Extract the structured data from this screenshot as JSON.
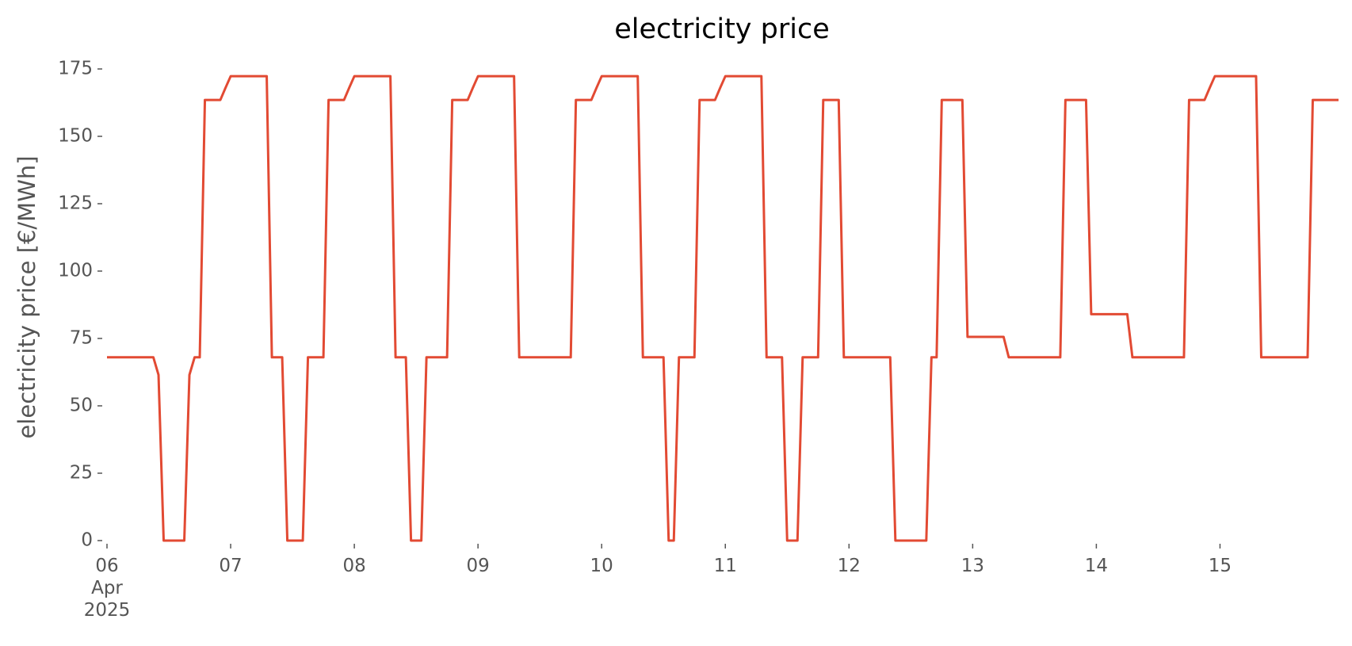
{
  "chart_data": {
    "type": "line",
    "title": "electricity price",
    "ylabel": "electricity price [€/MWh]",
    "x": [
      "2025-04-06T00:00",
      "2025-04-06T01:00",
      "2025-04-06T02:00",
      "2025-04-06T03:00",
      "2025-04-06T04:00",
      "2025-04-06T05:00",
      "2025-04-06T06:00",
      "2025-04-06T07:00",
      "2025-04-06T08:00",
      "2025-04-06T09:00",
      "2025-04-06T10:00",
      "2025-04-06T11:00",
      "2025-04-06T12:00",
      "2025-04-06T13:00",
      "2025-04-06T14:00",
      "2025-04-06T15:00",
      "2025-04-06T16:00",
      "2025-04-06T17:00",
      "2025-04-06T18:00",
      "2025-04-06T19:00",
      "2025-04-06T20:00",
      "2025-04-06T21:00",
      "2025-04-06T22:00",
      "2025-04-06T23:00",
      "2025-04-07T00:00",
      "2025-04-07T01:00",
      "2025-04-07T02:00",
      "2025-04-07T03:00",
      "2025-04-07T04:00",
      "2025-04-07T05:00",
      "2025-04-07T06:00",
      "2025-04-07T07:00",
      "2025-04-07T08:00",
      "2025-04-07T09:00",
      "2025-04-07T10:00",
      "2025-04-07T11:00",
      "2025-04-07T12:00",
      "2025-04-07T13:00",
      "2025-04-07T14:00",
      "2025-04-07T15:00",
      "2025-04-07T16:00",
      "2025-04-07T17:00",
      "2025-04-07T18:00",
      "2025-04-07T19:00",
      "2025-04-07T20:00",
      "2025-04-07T21:00",
      "2025-04-07T22:00",
      "2025-04-07T23:00",
      "2025-04-08T00:00",
      "2025-04-08T01:00",
      "2025-04-08T02:00",
      "2025-04-08T03:00",
      "2025-04-08T04:00",
      "2025-04-08T05:00",
      "2025-04-08T06:00",
      "2025-04-08T07:00",
      "2025-04-08T08:00",
      "2025-04-08T09:00",
      "2025-04-08T10:00",
      "2025-04-08T11:00",
      "2025-04-08T12:00",
      "2025-04-08T13:00",
      "2025-04-08T14:00",
      "2025-04-08T15:00",
      "2025-04-08T16:00",
      "2025-04-08T17:00",
      "2025-04-08T18:00",
      "2025-04-08T19:00",
      "2025-04-08T20:00",
      "2025-04-08T21:00",
      "2025-04-08T22:00",
      "2025-04-08T23:00",
      "2025-04-09T00:00",
      "2025-04-09T01:00",
      "2025-04-09T02:00",
      "2025-04-09T03:00",
      "2025-04-09T04:00",
      "2025-04-09T05:00",
      "2025-04-09T06:00",
      "2025-04-09T07:00",
      "2025-04-09T08:00",
      "2025-04-09T09:00",
      "2025-04-09T10:00",
      "2025-04-09T11:00",
      "2025-04-09T12:00",
      "2025-04-09T13:00",
      "2025-04-09T14:00",
      "2025-04-09T15:00",
      "2025-04-09T16:00",
      "2025-04-09T17:00",
      "2025-04-09T18:00",
      "2025-04-09T19:00",
      "2025-04-09T20:00",
      "2025-04-09T21:00",
      "2025-04-09T22:00",
      "2025-04-09T23:00",
      "2025-04-10T00:00",
      "2025-04-10T01:00",
      "2025-04-10T02:00",
      "2025-04-10T03:00",
      "2025-04-10T04:00",
      "2025-04-10T05:00",
      "2025-04-10T06:00",
      "2025-04-10T07:00",
      "2025-04-10T08:00",
      "2025-04-10T09:00",
      "2025-04-10T10:00",
      "2025-04-10T11:00",
      "2025-04-10T12:00",
      "2025-04-10T13:00",
      "2025-04-10T14:00",
      "2025-04-10T15:00",
      "2025-04-10T16:00",
      "2025-04-10T17:00",
      "2025-04-10T18:00",
      "2025-04-10T19:00",
      "2025-04-10T20:00",
      "2025-04-10T21:00",
      "2025-04-10T22:00",
      "2025-04-10T23:00",
      "2025-04-11T00:00",
      "2025-04-11T01:00",
      "2025-04-11T02:00",
      "2025-04-11T03:00",
      "2025-04-11T04:00",
      "2025-04-11T05:00",
      "2025-04-11T06:00",
      "2025-04-11T07:00",
      "2025-04-11T08:00",
      "2025-04-11T09:00",
      "2025-04-11T10:00",
      "2025-04-11T11:00",
      "2025-04-11T12:00",
      "2025-04-11T13:00",
      "2025-04-11T14:00",
      "2025-04-11T15:00",
      "2025-04-11T16:00",
      "2025-04-11T17:00",
      "2025-04-11T18:00",
      "2025-04-11T19:00",
      "2025-04-11T20:00",
      "2025-04-11T21:00",
      "2025-04-11T22:00",
      "2025-04-11T23:00",
      "2025-04-12T00:00",
      "2025-04-12T01:00",
      "2025-04-12T02:00",
      "2025-04-12T03:00",
      "2025-04-12T04:00",
      "2025-04-12T05:00",
      "2025-04-12T06:00",
      "2025-04-12T07:00",
      "2025-04-12T08:00",
      "2025-04-12T09:00",
      "2025-04-12T10:00",
      "2025-04-12T11:00",
      "2025-04-12T12:00",
      "2025-04-12T13:00",
      "2025-04-12T14:00",
      "2025-04-12T15:00",
      "2025-04-12T16:00",
      "2025-04-12T17:00",
      "2025-04-12T18:00",
      "2025-04-12T19:00",
      "2025-04-12T20:00",
      "2025-04-12T21:00",
      "2025-04-12T22:00",
      "2025-04-12T23:00",
      "2025-04-13T00:00",
      "2025-04-13T01:00",
      "2025-04-13T02:00",
      "2025-04-13T03:00",
      "2025-04-13T04:00",
      "2025-04-13T05:00",
      "2025-04-13T06:00",
      "2025-04-13T07:00",
      "2025-04-13T08:00",
      "2025-04-13T09:00",
      "2025-04-13T10:00",
      "2025-04-13T11:00",
      "2025-04-13T12:00",
      "2025-04-13T13:00",
      "2025-04-13T14:00",
      "2025-04-13T15:00",
      "2025-04-13T16:00",
      "2025-04-13T17:00",
      "2025-04-13T18:00",
      "2025-04-13T19:00",
      "2025-04-13T20:00",
      "2025-04-13T21:00",
      "2025-04-13T22:00",
      "2025-04-13T23:00",
      "2025-04-14T00:00",
      "2025-04-14T01:00",
      "2025-04-14T02:00",
      "2025-04-14T03:00",
      "2025-04-14T04:00",
      "2025-04-14T05:00",
      "2025-04-14T06:00",
      "2025-04-14T07:00",
      "2025-04-14T08:00",
      "2025-04-14T09:00",
      "2025-04-14T10:00",
      "2025-04-14T11:00",
      "2025-04-14T12:00",
      "2025-04-14T13:00",
      "2025-04-14T14:00",
      "2025-04-14T15:00",
      "2025-04-14T16:00",
      "2025-04-14T17:00",
      "2025-04-14T18:00",
      "2025-04-14T19:00",
      "2025-04-14T20:00",
      "2025-04-14T21:00",
      "2025-04-14T22:00",
      "2025-04-14T23:00",
      "2025-04-15T00:00",
      "2025-04-15T01:00",
      "2025-04-15T02:00",
      "2025-04-15T03:00",
      "2025-04-15T04:00",
      "2025-04-15T05:00",
      "2025-04-15T06:00",
      "2025-04-15T07:00",
      "2025-04-15T08:00",
      "2025-04-15T09:00",
      "2025-04-15T10:00",
      "2025-04-15T11:00",
      "2025-04-15T12:00",
      "2025-04-15T13:00",
      "2025-04-15T14:00",
      "2025-04-15T15:00",
      "2025-04-15T16:00",
      "2025-04-15T17:00",
      "2025-04-15T18:00",
      "2025-04-15T19:00",
      "2025-04-15T20:00",
      "2025-04-15T21:00",
      "2025-04-15T22:00",
      "2025-04-15T23:00"
    ],
    "values": [
      68,
      68,
      68,
      68,
      68,
      68,
      68,
      68,
      68,
      68,
      61.5,
      0,
      0,
      0,
      0,
      0,
      61.5,
      68,
      68,
      163.5,
      163.5,
      163.5,
      163.5,
      168,
      172.3,
      172.3,
      172.3,
      172.3,
      172.3,
      172.3,
      172.3,
      172.3,
      68,
      68,
      68,
      0,
      0,
      0,
      0,
      68,
      68,
      68,
      68,
      163.5,
      163.5,
      163.5,
      163.5,
      168,
      172.3,
      172.3,
      172.3,
      172.3,
      172.3,
      172.3,
      172.3,
      172.3,
      68,
      68,
      68,
      0,
      0,
      0,
      68,
      68,
      68,
      68,
      68,
      163.5,
      163.5,
      163.5,
      163.5,
      168,
      172.3,
      172.3,
      172.3,
      172.3,
      172.3,
      172.3,
      172.3,
      172.3,
      68,
      68,
      68,
      68,
      68,
      68,
      68,
      68,
      68,
      68,
      68,
      163.5,
      163.5,
      163.5,
      163.5,
      168,
      172.3,
      172.3,
      172.3,
      172.3,
      172.3,
      172.3,
      172.3,
      172.3,
      68,
      68,
      68,
      68,
      68,
      0,
      0,
      68,
      68,
      68,
      68,
      163.5,
      163.5,
      163.5,
      163.5,
      168,
      172.3,
      172.3,
      172.3,
      172.3,
      172.3,
      172.3,
      172.3,
      172.3,
      68,
      68,
      68,
      68,
      0,
      0,
      0,
      68,
      68,
      68,
      68,
      163.5,
      163.5,
      163.5,
      163.5,
      68,
      68,
      68,
      68,
      68,
      68,
      68,
      68,
      68,
      68,
      0,
      0,
      0,
      0,
      0,
      0,
      0,
      68,
      68,
      163.5,
      163.5,
      163.5,
      163.5,
      163.5,
      75.6,
      75.6,
      75.6,
      75.6,
      75.6,
      75.6,
      75.6,
      75.6,
      68,
      68,
      68,
      68,
      68,
      68,
      68,
      68,
      68,
      68,
      68,
      163.5,
      163.5,
      163.5,
      163.5,
      163.5,
      84,
      84,
      84,
      84,
      84,
      84,
      84,
      84,
      68,
      68,
      68,
      68,
      68,
      68,
      68,
      68,
      68,
      68,
      68,
      163.5,
      163.5,
      163.5,
      163.5,
      168,
      172.3,
      172.3,
      172.3,
      172.3,
      172.3,
      172.3,
      172.3,
      172.3,
      172.3,
      68,
      68,
      68,
      68,
      68,
      68,
      68,
      68,
      68,
      68,
      163.5,
      163.5,
      163.5,
      163.5,
      163.5,
      163.5
    ],
    "color": "#e24a33",
    "xlim": [
      "2025-04-06T00:00",
      "2025-04-15T23:00"
    ],
    "xticks": [
      {
        "value": "2025-04-06T00:00",
        "label": "06\nApr\n2025"
      },
      {
        "value": "2025-04-07T00:00",
        "label": "07"
      },
      {
        "value": "2025-04-08T00:00",
        "label": "08"
      },
      {
        "value": "2025-04-09T00:00",
        "label": "09"
      },
      {
        "value": "2025-04-10T00:00",
        "label": "10"
      },
      {
        "value": "2025-04-11T00:00",
        "label": "11"
      },
      {
        "value": "2025-04-12T00:00",
        "label": "12"
      },
      {
        "value": "2025-04-13T00:00",
        "label": "13"
      },
      {
        "value": "2025-04-14T00:00",
        "label": "14"
      },
      {
        "value": "2025-04-15T00:00",
        "label": "15"
      }
    ],
    "ylim": [
      0,
      175
    ],
    "yticks": [
      0,
      25,
      50,
      75,
      100,
      125,
      150,
      175
    ],
    "grid": false
  }
}
